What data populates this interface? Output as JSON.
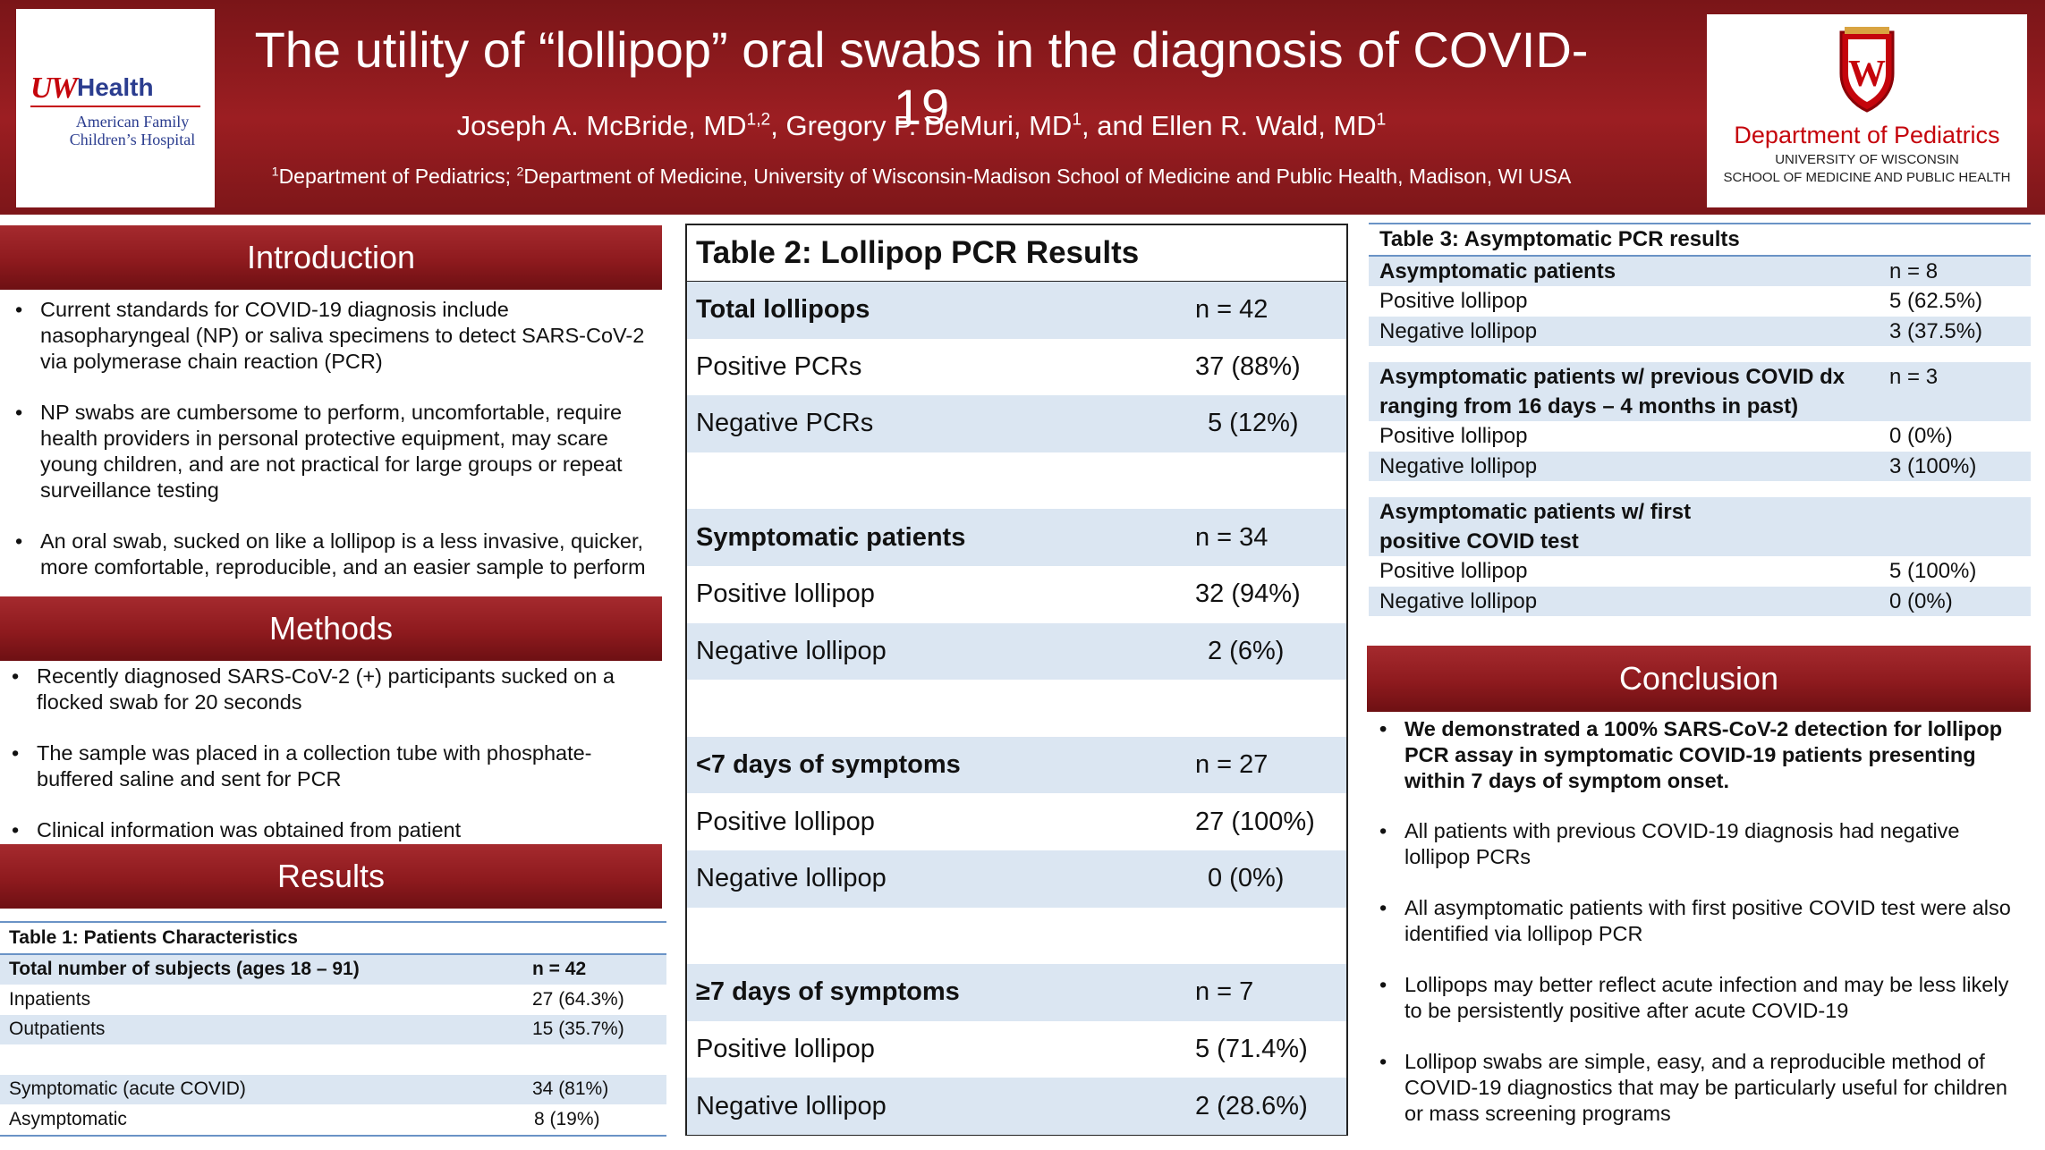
{
  "header": {
    "title": "The utility of “lollipop” oral swabs in the diagnosis of COVID-19",
    "authors": [
      {
        "name": "Joseph A. McBride, MD",
        "sup": "1,2",
        "sep": ", "
      },
      {
        "name": "Gregory P. DeMuri, MD",
        "sup": "1",
        "sep": ", and "
      },
      {
        "name": "Ellen R. Wald, MD",
        "sup": "1",
        "sep": ""
      }
    ],
    "affiliations": [
      {
        "sup": "1",
        "text": "Department of Pediatrics; "
      },
      {
        "sup": "2",
        "text": "Department of Medicine, University of Wisconsin-Madison School of Medicine and Public Health, Madison, WI USA"
      }
    ],
    "left_logo": {
      "mark": "UW",
      "brand": "Health",
      "sub_line1": "American Family",
      "sub_line2": "Children’s Hospital"
    },
    "right_logo": {
      "crest_letter": "W",
      "name": "Department of Pediatrics",
      "sub_line1": "UNIVERSITY OF WISCONSIN",
      "sub_line2": "SCHOOL OF MEDICINE AND PUBLIC HEALTH"
    }
  },
  "introduction": {
    "heading": "Introduction",
    "bullets": [
      "Current standards for COVID-19 diagnosis include nasopharyngeal (NP) or saliva specimens to detect SARS-CoV-2 via polymerase chain reaction (PCR)",
      "NP swabs are cumbersome to perform, uncomfortable, require health providers in personal protective equipment, may scare young children, and are not practical for large groups or repeat surveillance testing",
      "An oral swab, sucked on like a lollipop is a less invasive, quicker, more comfortable, reproducible, and an easier sample to perform"
    ]
  },
  "methods": {
    "heading": "Methods",
    "bullets": [
      "Recently diagnosed SARS-CoV-2 (+) participants sucked on a flocked swab for 20 seconds",
      "The sample was placed in a collection tube with phosphate-buffered saline and sent for PCR",
      "Clinical information was obtained from patient"
    ]
  },
  "results": {
    "heading": "Results",
    "table1": {
      "title": "Table 1: Patients Characteristics",
      "rows": [
        {
          "label": "Total number of subjects (ages 18 – 91)",
          "value": "n = 42"
        },
        {
          "label": "Inpatients",
          "value": "27 (64.3%)"
        },
        {
          "label": "Outpatients",
          "value": "15 (35.7%)"
        },
        {
          "label": "",
          "value": ""
        },
        {
          "label": "Symptomatic (acute COVID)",
          "value": "34 (81%)"
        },
        {
          "label": "Asymptomatic",
          "value": "8 (19%)"
        }
      ]
    }
  },
  "table2": {
    "title": "Table 2: Lollipop PCR Results",
    "rows": [
      {
        "label": "Total lollipops",
        "value": "n = 42"
      },
      {
        "label": "Positive PCRs",
        "value": "37 (88%)"
      },
      {
        "label": "Negative PCRs",
        "value": "5 (12%)"
      },
      {
        "label": "",
        "value": ""
      },
      {
        "label": "Symptomatic patients",
        "value": "n = 34"
      },
      {
        "label": "Positive lollipop",
        "value": "32 (94%)"
      },
      {
        "label": "Negative lollipop",
        "value": "2 (6%)"
      },
      {
        "label": "",
        "value": ""
      },
      {
        "label": "<7 days of symptoms",
        "value": "n = 27"
      },
      {
        "label": "Positive lollipop",
        "value": "27 (100%)"
      },
      {
        "label": "Negative lollipop",
        "value": "0 (0%)"
      },
      {
        "label": "",
        "value": ""
      },
      {
        "label": "≥7 days of symptoms",
        "value": "n = 7"
      },
      {
        "label": "Positive lollipop",
        "value": "5 (71.4%)"
      },
      {
        "label": "Negative lollipop",
        "value": "2 (28.6%)"
      }
    ]
  },
  "table3": {
    "title": "Table 3: Asymptomatic PCR results",
    "rows": [
      {
        "label": "Asymptomatic patients",
        "value": "n = 8"
      },
      {
        "label": "Positive lollipop",
        "value": "5 (62.5%)"
      },
      {
        "label": "Negative lollipop",
        "value": "3 (37.5%)"
      },
      {
        "label": "",
        "value": ""
      },
      {
        "label": "Asymptomatic patients w/ previous COVID dx ranging from 16 days – 4 months in past)",
        "value": "n = 3"
      },
      {
        "label": "Positive lollipop",
        "value": "0 (0%)"
      },
      {
        "label": "Negative lollipop",
        "value": "3 (100%)"
      },
      {
        "label": "",
        "value": ""
      },
      {
        "label": "Asymptomatic patients w/ first positive COVID test",
        "value": ""
      },
      {
        "label": "Positive lollipop",
        "value": "5 (100%)"
      },
      {
        "label": "Negative lollipop",
        "value": "0 (0%)"
      }
    ]
  },
  "conclusion": {
    "heading": "Conclusion",
    "bold_bullets": [
      "We demonstrated a 100% SARS-CoV-2 detection for lollipop PCR assay in symptomatic COVID-19 patients presenting within 7 days of symptom onset."
    ],
    "bullets": [
      "All patients with previous COVID-19 diagnosis had negative lollipop PCRs",
      "All asymptomatic patients with first positive COVID test were also identified via lollipop PCR",
      "Lollipops may better reflect acute infection and may be less likely to be persistently positive after acute COVID-19",
      "Lollipop swabs are simple, easy, and a reproducible method of COVID-19 diagnostics that may be particularly useful for children or mass screening programs"
    ]
  },
  "colors": {
    "maroon": "#8e1a1e",
    "table_shade": "#dbe6f2",
    "table_rule": "#6a93c6",
    "uw_red": "#c5050c"
  }
}
